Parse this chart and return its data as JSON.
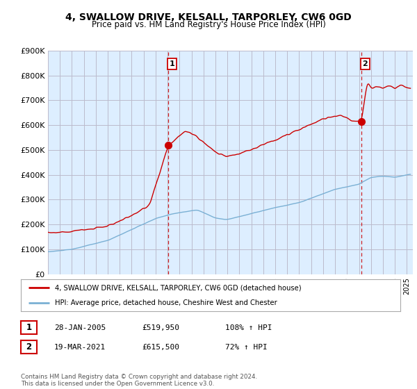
{
  "title": "4, SWALLOW DRIVE, KELSALL, TARPORLEY, CW6 0GD",
  "subtitle": "Price paid vs. HM Land Registry's House Price Index (HPI)",
  "ylim": [
    0,
    900000
  ],
  "xlim_start": 1995.0,
  "xlim_end": 2025.5,
  "sale1": {
    "date_num": 2005.07,
    "price": 519950,
    "label": "1"
  },
  "sale2": {
    "date_num": 2021.21,
    "price": 615500,
    "label": "2"
  },
  "legend_line1": "4, SWALLOW DRIVE, KELSALL, TARPORLEY, CW6 0GD (detached house)",
  "legend_line2": "HPI: Average price, detached house, Cheshire West and Chester",
  "table_row1": [
    "1",
    "28-JAN-2005",
    "£519,950",
    "108% ↑ HPI"
  ],
  "table_row2": [
    "2",
    "19-MAR-2021",
    "£615,500",
    "72% ↑ HPI"
  ],
  "footer": "Contains HM Land Registry data © Crown copyright and database right 2024.\nThis data is licensed under the Open Government Licence v3.0.",
  "line_color_red": "#cc0000",
  "line_color_blue": "#7ab0d4",
  "vline_color": "#cc0000",
  "bg_color": "#ddeeff",
  "plot_bg": "#ddeeff",
  "grid_color": "#bbbbcc",
  "fig_bg": "#ffffff"
}
